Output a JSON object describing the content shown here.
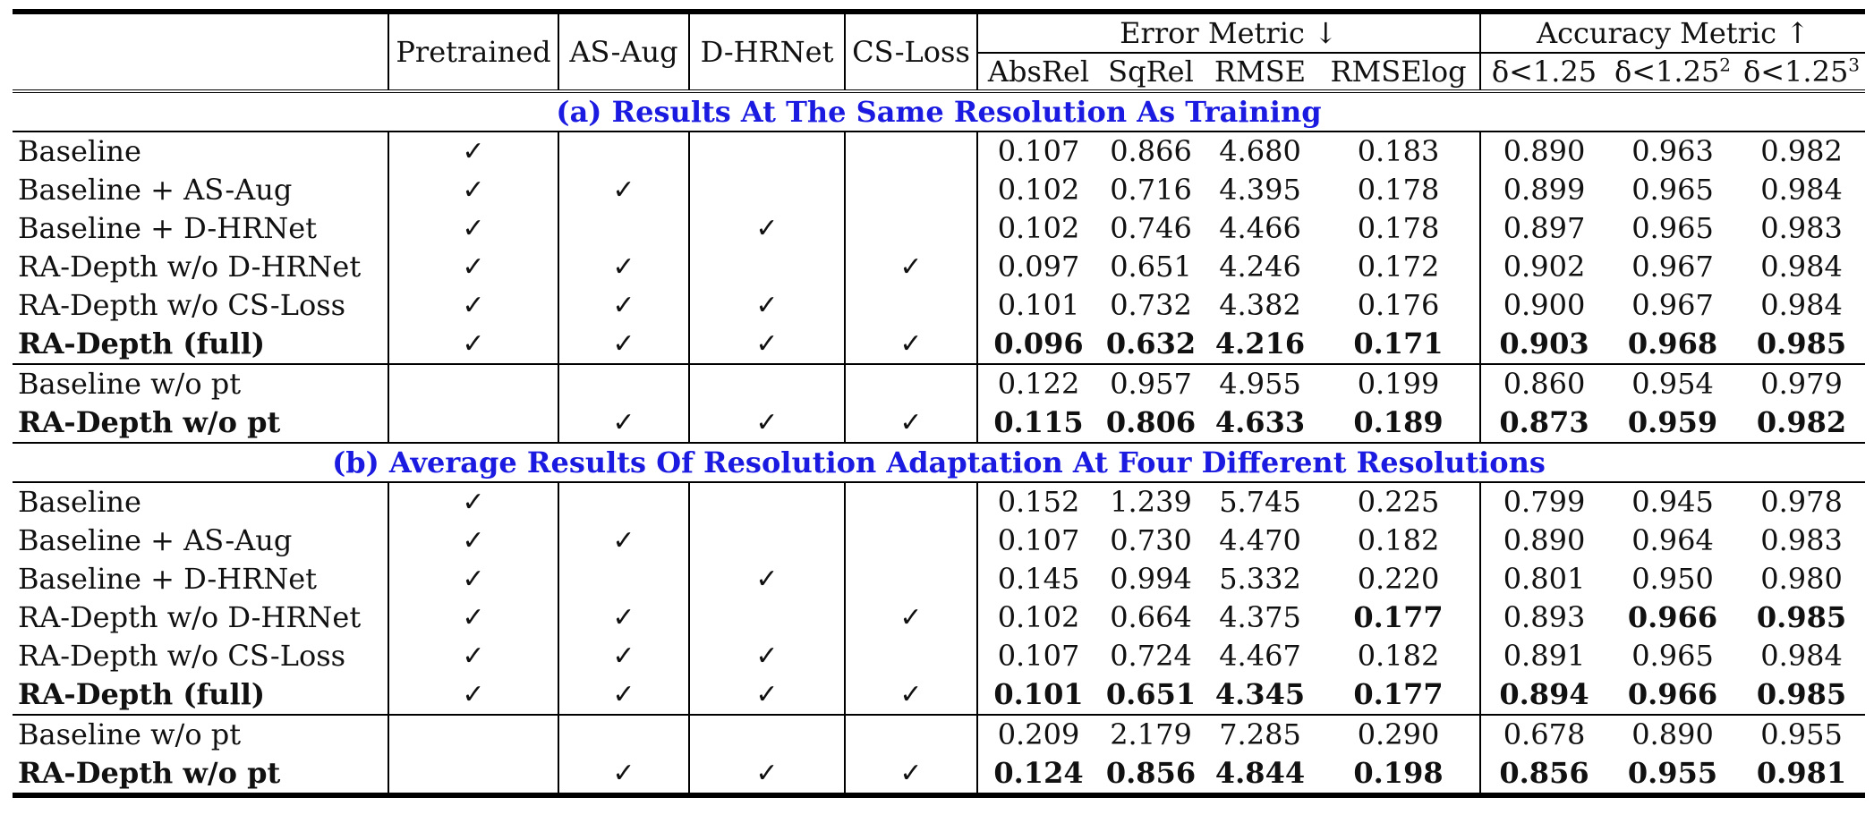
{
  "header": {
    "col_method": "",
    "col_pretrained": "Pretrained",
    "col_asaug": "AS-Aug",
    "col_dhrnet": "D-HRNet",
    "col_csloss": "CS-Loss",
    "group_error": "Error Metric ↓",
    "group_accuracy": "Accuracy Metric ↑",
    "metric_absrel": "AbsRel",
    "metric_sqrel": "SqRel",
    "metric_rmse": "RMSE",
    "metric_rmselog": "RMSElog",
    "metric_d1": "δ<1.25",
    "metric_d2_base": "δ<1.25",
    "metric_d2_exp": "2",
    "metric_d3_base": "δ<1.25",
    "metric_d3_exp": "3"
  },
  "check_glyph": "✓",
  "sections": {
    "a_title": "(a) Results At The Same Resolution As Training",
    "b_title": "(b) Average Results Of Resolution Adaptation At Four Different Resolutions"
  },
  "rows_a": [
    {
      "name": "Baseline",
      "pt": "✓",
      "aug": "",
      "hr": "",
      "cs": "",
      "v": [
        "0.107",
        "0.866",
        "4.680",
        "0.183",
        "0.890",
        "0.963",
        "0.982"
      ]
    },
    {
      "name": "Baseline + AS-Aug",
      "pt": "✓",
      "aug": "✓",
      "hr": "",
      "cs": "",
      "v": [
        "0.102",
        "0.716",
        "4.395",
        "0.178",
        "0.899",
        "0.965",
        "0.984"
      ]
    },
    {
      "name": "Baseline + D-HRNet",
      "pt": "✓",
      "aug": "",
      "hr": "✓",
      "cs": "",
      "v": [
        "0.102",
        "0.746",
        "4.466",
        "0.178",
        "0.897",
        "0.965",
        "0.983"
      ]
    },
    {
      "name": "RA-Depth w/o D-HRNet",
      "pt": "✓",
      "aug": "✓",
      "hr": "",
      "cs": "✓",
      "v": [
        "0.097",
        "0.651",
        "4.246",
        "0.172",
        "0.902",
        "0.967",
        "0.984"
      ]
    },
    {
      "name": "RA-Depth w/o CS-Loss",
      "pt": "✓",
      "aug": "✓",
      "hr": "✓",
      "cs": "",
      "v": [
        "0.101",
        "0.732",
        "4.382",
        "0.176",
        "0.900",
        "0.967",
        "0.984"
      ]
    },
    {
      "name": "RA-Depth (full)",
      "pt": "✓",
      "aug": "✓",
      "hr": "✓",
      "cs": "✓",
      "v": [
        "0.096",
        "0.632",
        "4.216",
        "0.171",
        "0.903",
        "0.968",
        "0.985"
      ]
    },
    {
      "name": "Baseline w/o pt",
      "pt": "",
      "aug": "",
      "hr": "",
      "cs": "",
      "v": [
        "0.122",
        "0.957",
        "4.955",
        "0.199",
        "0.860",
        "0.954",
        "0.979"
      ]
    },
    {
      "name": "RA-Depth w/o pt",
      "pt": "",
      "aug": "✓",
      "hr": "✓",
      "cs": "✓",
      "v": [
        "0.115",
        "0.806",
        "4.633",
        "0.189",
        "0.873",
        "0.959",
        "0.982"
      ]
    }
  ],
  "rows_b": [
    {
      "name": "Baseline",
      "pt": "✓",
      "aug": "",
      "hr": "",
      "cs": "",
      "v": [
        "0.152",
        "1.239",
        "5.745",
        "0.225",
        "0.799",
        "0.945",
        "0.978"
      ]
    },
    {
      "name": "Baseline + AS-Aug",
      "pt": "✓",
      "aug": "✓",
      "hr": "",
      "cs": "",
      "v": [
        "0.107",
        "0.730",
        "4.470",
        "0.182",
        "0.890",
        "0.964",
        "0.983"
      ]
    },
    {
      "name": "Baseline + D-HRNet",
      "pt": "✓",
      "aug": "",
      "hr": "✓",
      "cs": "",
      "v": [
        "0.145",
        "0.994",
        "5.332",
        "0.220",
        "0.801",
        "0.950",
        "0.980"
      ]
    },
    {
      "name": "RA-Depth w/o D-HRNet",
      "pt": "✓",
      "aug": "✓",
      "hr": "",
      "cs": "✓",
      "v": [
        "0.102",
        "0.664",
        "4.375",
        "0.177",
        "0.893",
        "0.966",
        "0.985"
      ]
    },
    {
      "name": "RA-Depth w/o CS-Loss",
      "pt": "✓",
      "aug": "✓",
      "hr": "✓",
      "cs": "",
      "v": [
        "0.107",
        "0.724",
        "4.467",
        "0.182",
        "0.891",
        "0.965",
        "0.984"
      ]
    },
    {
      "name": "RA-Depth (full)",
      "pt": "✓",
      "aug": "✓",
      "hr": "✓",
      "cs": "✓",
      "v": [
        "0.101",
        "0.651",
        "4.345",
        "0.177",
        "0.894",
        "0.966",
        "0.985"
      ]
    },
    {
      "name": "Baseline w/o pt",
      "pt": "",
      "aug": "",
      "hr": "",
      "cs": "",
      "v": [
        "0.209",
        "2.179",
        "7.285",
        "0.290",
        "0.678",
        "0.890",
        "0.955"
      ]
    },
    {
      "name": "RA-Depth w/o pt",
      "pt": "",
      "aug": "✓",
      "hr": "✓",
      "cs": "✓",
      "v": [
        "0.124",
        "0.856",
        "4.844",
        "0.198",
        "0.856",
        "0.955",
        "0.981"
      ]
    }
  ]
}
